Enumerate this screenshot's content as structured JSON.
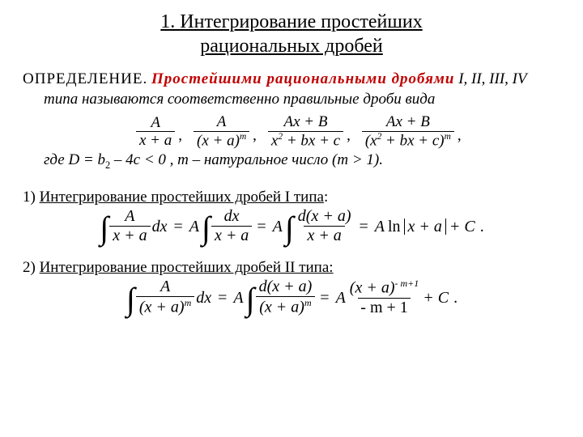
{
  "colors": {
    "text": "#000000",
    "term": "#c00000",
    "bg": "#ffffff"
  },
  "title": {
    "line1": "1. Интегрирование простейших",
    "line2": "рациональных дробей"
  },
  "def": {
    "label": "ОПРЕДЕЛЕНИЕ.",
    "term": "Простейшими рациональными дробями",
    "tail1": " I, II, III, IV",
    "tail2": "типа называются соответственно правильные дроби вида"
  },
  "fractions": {
    "f1": {
      "num": "A",
      "den": "x + a"
    },
    "f2": {
      "num": "A",
      "den_l": "(x + a)",
      "den_exp": "m"
    },
    "f3": {
      "num": "Ax + B",
      "den_l": "x",
      "den_exp": "2",
      "den_r": " + bx + c"
    },
    "f4": {
      "num": "Ax + B",
      "den_l": "(x",
      "den_exp1": "2",
      "den_mid": " + bx + c)",
      "den_exp2": "m"
    }
  },
  "where": {
    "text_l": "где  D = b",
    "exp": "2",
    "text_m": " – 4c < 0 ,  m – натуральное число  (m > 1)."
  },
  "sec1": {
    "lead": "1) ",
    "title": "Интегрирование простейших дробей  I  типа",
    "colon": ":"
  },
  "eq1": {
    "int": "∫",
    "f1_num": "A",
    "f1_den": "x + a",
    "dx": "dx",
    "A": "A",
    "f2_num": "dx",
    "f2_den": "x + a",
    "f3_num": "d(x + a)",
    "f3_den": "x + a",
    "ln": "ln",
    "abs": "x + a",
    "plusC": " + C",
    "period": "."
  },
  "sec2": {
    "lead": "2) ",
    "title": "Интегрирование простейших дробей  II  типа:"
  },
  "eq2": {
    "int": "∫",
    "f1_num": "A",
    "f1_den_l": "(x + a)",
    "f1_den_exp": "m",
    "dx": "dx",
    "A": "A",
    "f2_num": "d(x + a)",
    "f2_den_l": "(x + a)",
    "f2_den_exp": "m",
    "f3_num_l": "(x + a)",
    "f3_num_exp": "- m+1",
    "f3_den": "- m + 1",
    "plusC": " + C",
    "period": "."
  }
}
